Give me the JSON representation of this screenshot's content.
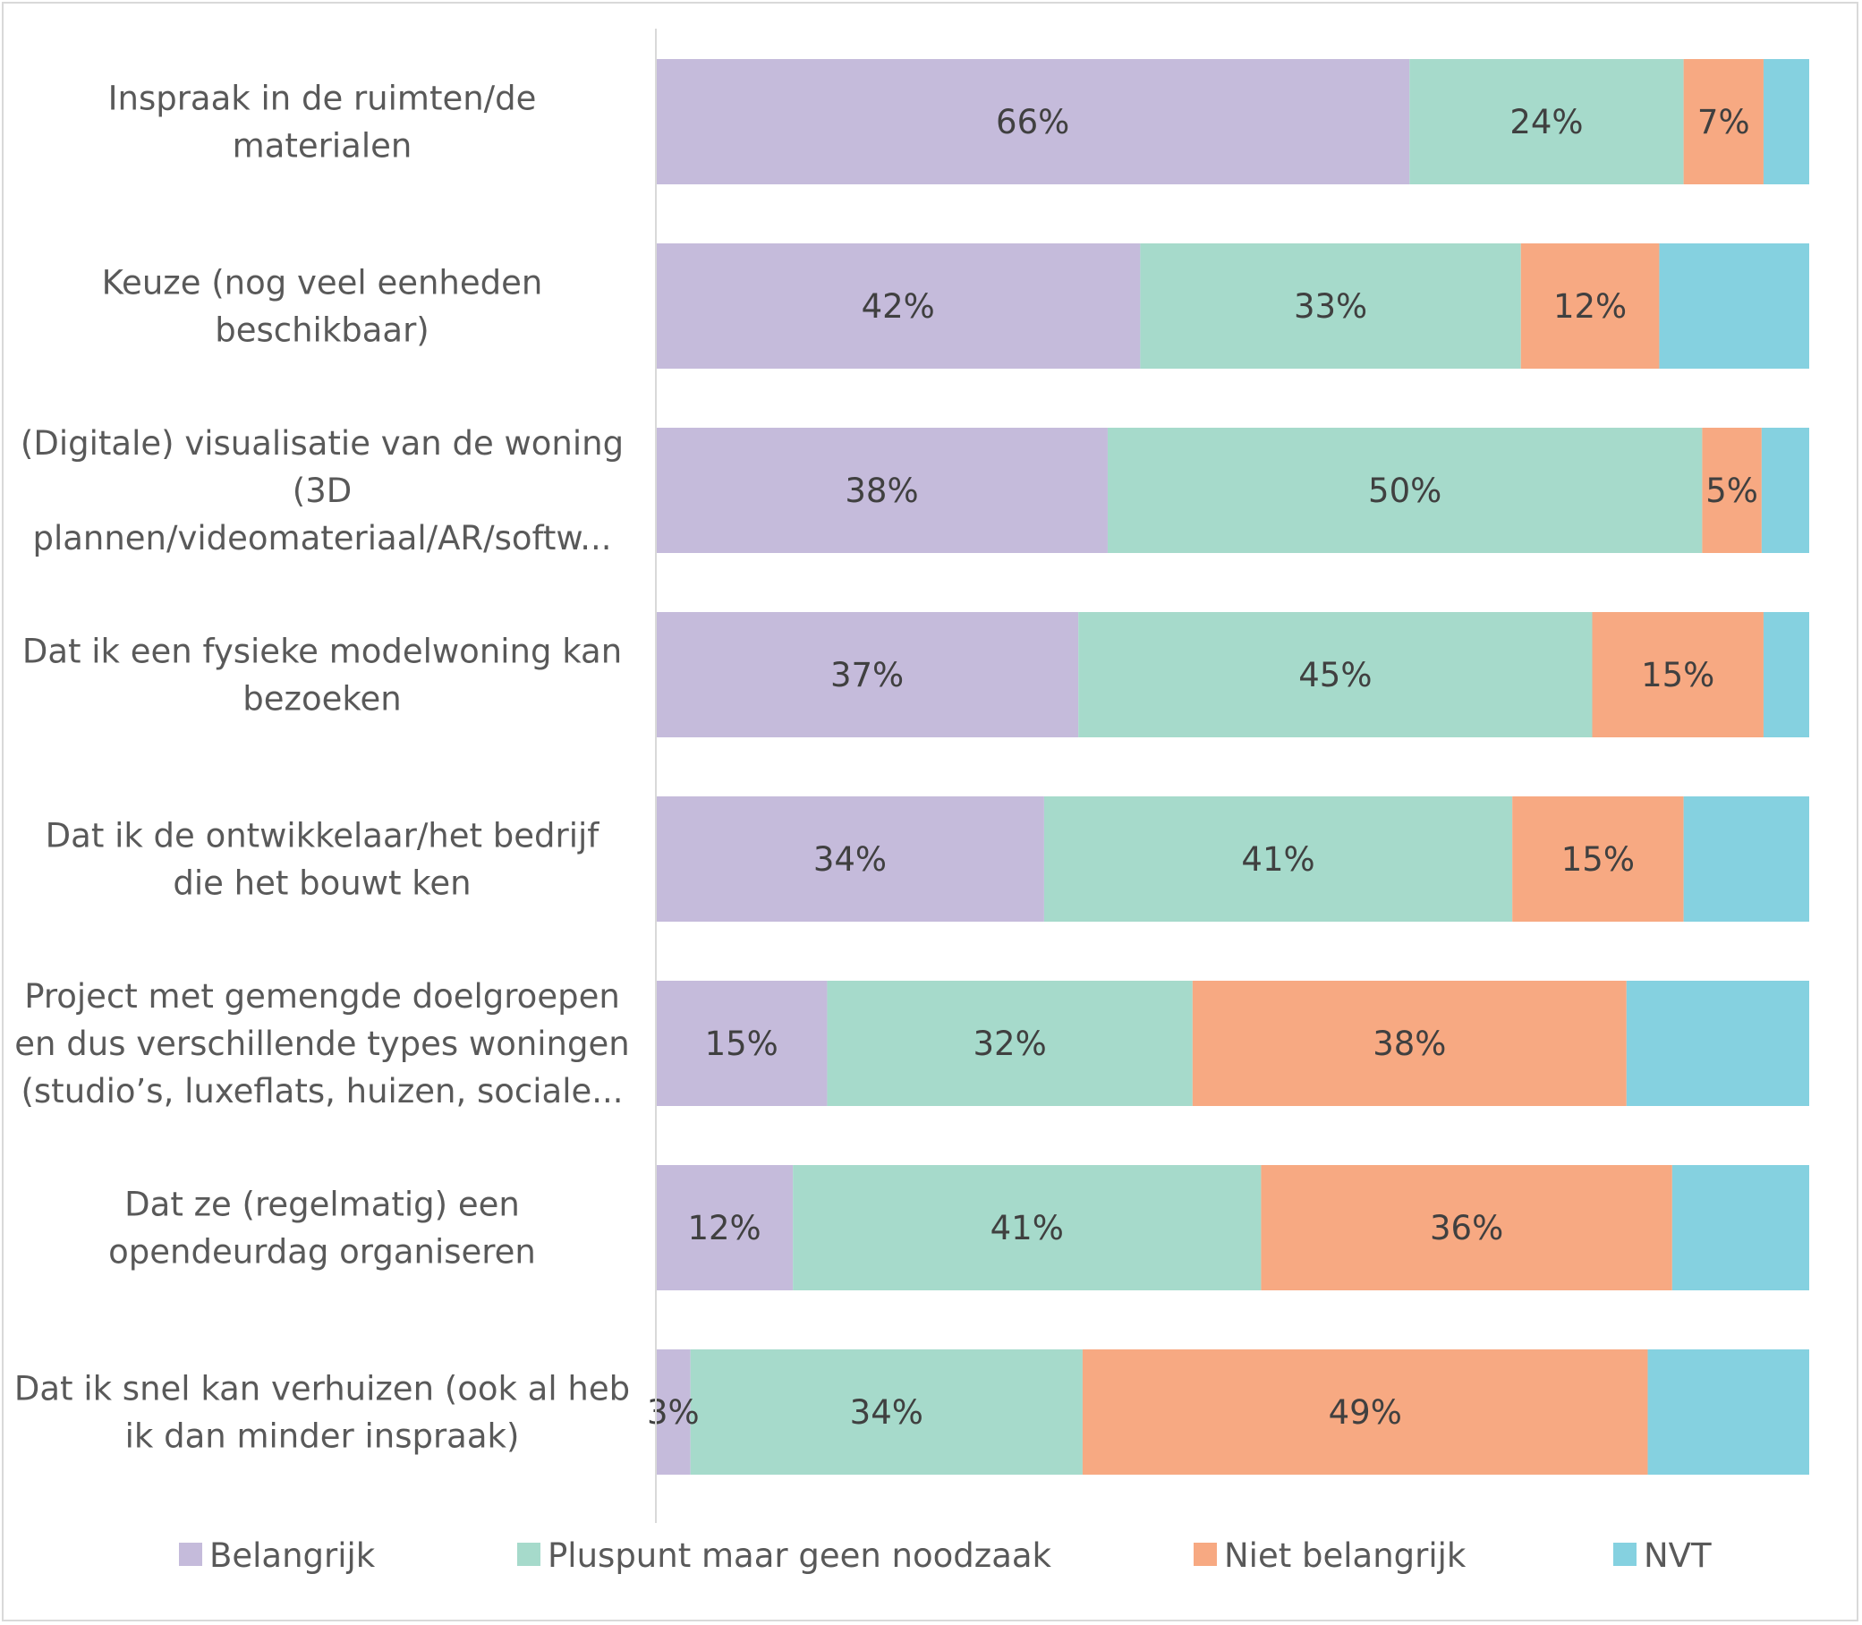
{
  "chart_data": {
    "type": "bar",
    "orientation": "horizontal",
    "stacking": "percent",
    "title": "",
    "xlabel": "",
    "ylabel": "",
    "xlim": [
      0,
      100
    ],
    "grid": false,
    "legend_position": "bottom",
    "categories": [
      [
        "Inspraak in de ruimten/de",
        "materialen"
      ],
      [
        "Keuze (nog veel eenheden",
        "beschikbaar)"
      ],
      [
        "(Digitale) visualisatie van de woning",
        "(3D",
        "plannen/videomateriaal/AR/softw..."
      ],
      [
        "Dat ik een fysieke modelwoning kan",
        "bezoeken"
      ],
      [
        "Dat ik de ontwikkelaar/het bedrijf",
        "die het bouwt ken"
      ],
      [
        "Project met gemengde doelgroepen",
        "en dus verschillende types woningen",
        "(studio’s, luxeflats, huizen, sociale..."
      ],
      [
        "Dat ze (regelmatig) een",
        "opendeurdag organiseren"
      ],
      [
        "Dat ik snel kan verhuizen (ook al heb",
        "ik dan minder inspraak)"
      ]
    ],
    "series": [
      {
        "name": "Belangrijk",
        "color": "#c5bbdb",
        "values": [
          66,
          42,
          38,
          37,
          34,
          15,
          12,
          3
        ],
        "labels": [
          "66%",
          "42%",
          "38%",
          "37%",
          "34%",
          "15%",
          "12%",
          "3%"
        ]
      },
      {
        "name": "Pluspunt maar geen noodzaak",
        "color": "#a6dacb",
        "values": [
          24,
          33,
          50,
          45,
          41,
          32,
          41,
          34
        ],
        "labels": [
          "24%",
          "33%",
          "50%",
          "45%",
          "41%",
          "32%",
          "41%",
          "34%"
        ]
      },
      {
        "name": "Niet belangrijk",
        "color": "#f7a982",
        "values": [
          7,
          12,
          5,
          15,
          15,
          38,
          36,
          49
        ],
        "labels": [
          "7%",
          "12%",
          "5%",
          "15%",
          "15%",
          "38%",
          "36%",
          "49%"
        ]
      },
      {
        "name": "NVT",
        "color": "#85d1e0",
        "values": [
          4,
          13,
          4,
          4,
          11,
          16,
          12,
          14
        ],
        "labels": [
          "",
          "",
          "",
          "",
          "",
          "",
          "",
          ""
        ]
      }
    ]
  }
}
